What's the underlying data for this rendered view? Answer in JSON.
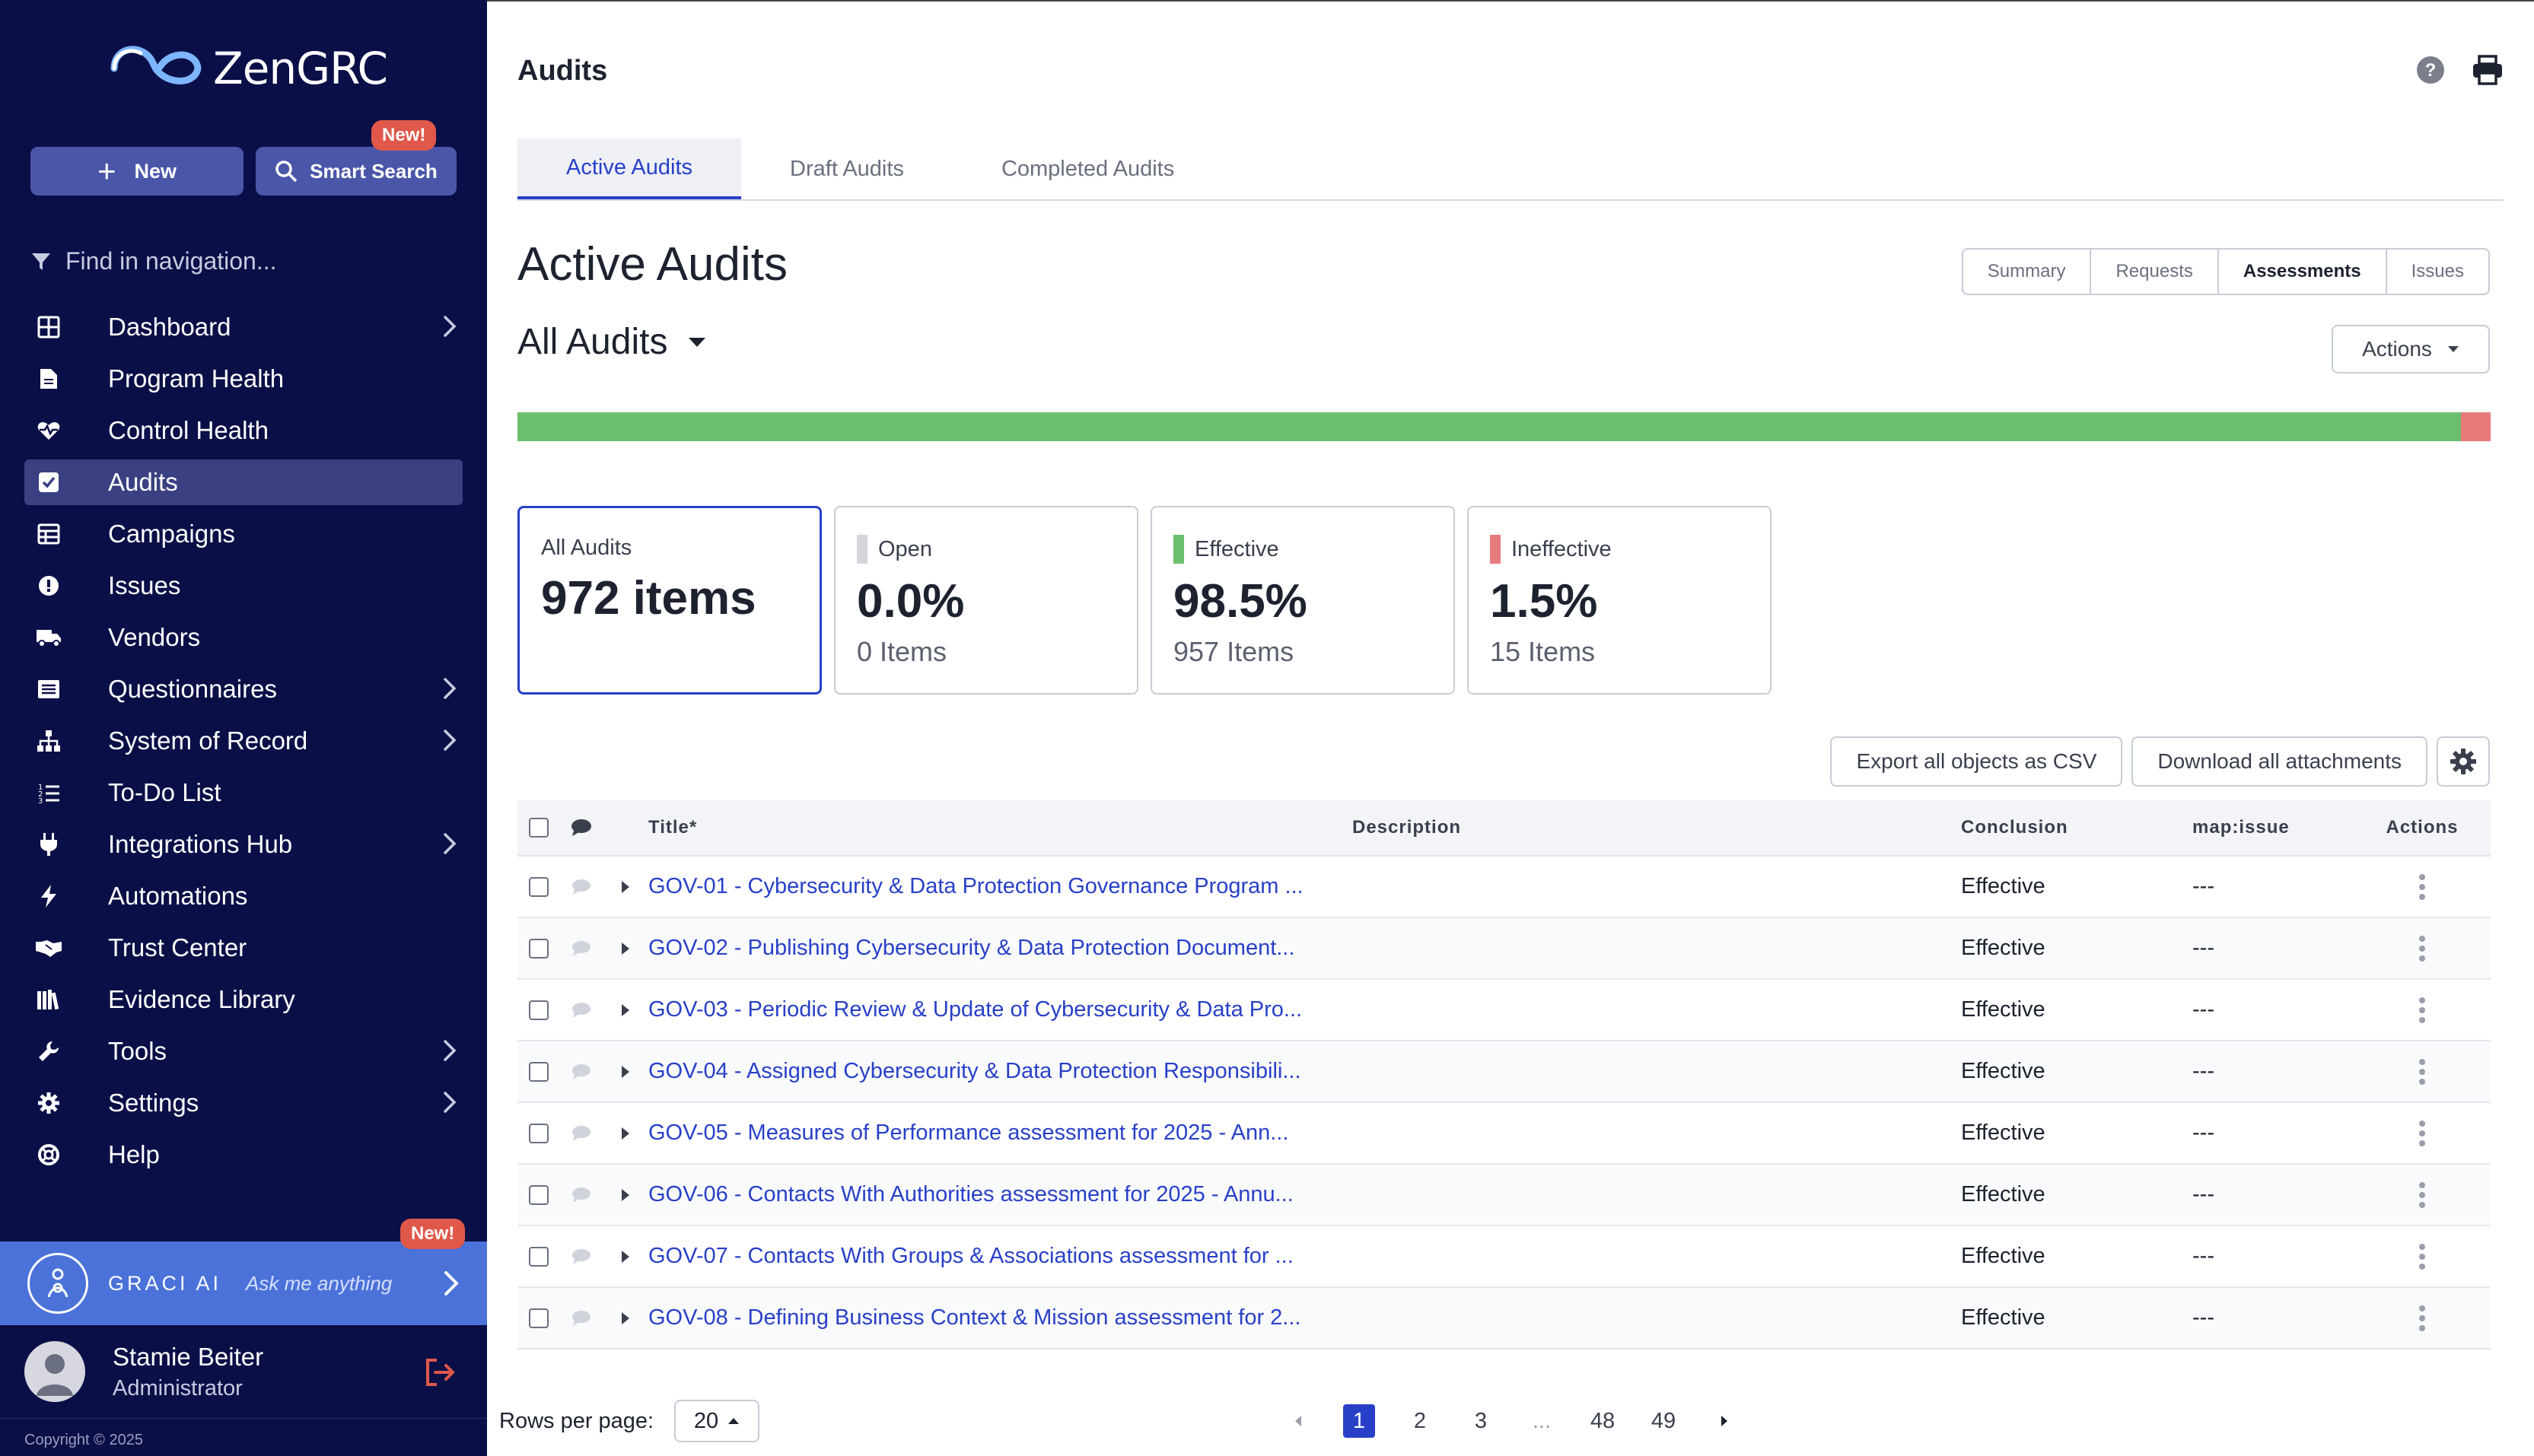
{
  "app": {
    "logo": "ZenGRC"
  },
  "sidebar": {
    "new_label": "New",
    "smart_search_label": "Smart Search",
    "smart_search_badge": "New!",
    "find_placeholder": "Find in navigation...",
    "items": [
      {
        "label": "Dashboard",
        "icon": "grid-icon",
        "chevron": true
      },
      {
        "label": "Program Health",
        "icon": "document-icon",
        "chevron": false
      },
      {
        "label": "Control Health",
        "icon": "heartbeat-icon",
        "chevron": false
      },
      {
        "label": "Audits",
        "icon": "checkbox-icon",
        "chevron": false,
        "active": true
      },
      {
        "label": "Campaigns",
        "icon": "table-icon",
        "chevron": false
      },
      {
        "label": "Issues",
        "icon": "alert-circle-icon",
        "chevron": false
      },
      {
        "label": "Vendors",
        "icon": "truck-icon",
        "chevron": false
      },
      {
        "label": "Questionnaires",
        "icon": "list-icon",
        "chevron": true
      },
      {
        "label": "System of Record",
        "icon": "sitemap-icon",
        "chevron": true
      },
      {
        "label": "To-Do List",
        "icon": "numbered-list-icon",
        "chevron": false
      },
      {
        "label": "Integrations Hub",
        "icon": "plug-icon",
        "chevron": true
      },
      {
        "label": "Automations",
        "icon": "bolt-icon",
        "chevron": false
      },
      {
        "label": "Trust Center",
        "icon": "handshake-icon",
        "chevron": false
      },
      {
        "label": "Evidence Library",
        "icon": "library-icon",
        "chevron": false
      },
      {
        "label": "Tools",
        "icon": "wrench-icon",
        "chevron": true
      },
      {
        "label": "Settings",
        "icon": "gear-icon",
        "chevron": true
      },
      {
        "label": "Help",
        "icon": "lifebuoy-icon",
        "chevron": false
      }
    ],
    "graci": {
      "title": "GRACI AI",
      "hint": "Ask me anything",
      "badge": "New!"
    },
    "user": {
      "name": "Stamie Beiter",
      "role": "Administrator"
    },
    "copyright": "Copyright © 2025"
  },
  "header": {
    "title": "Audits"
  },
  "tabs": [
    "Active Audits",
    "Draft Audits",
    "Completed Audits"
  ],
  "section": {
    "title": "Active Audits",
    "filter_title": "All Audits",
    "views": [
      "Summary",
      "Requests",
      "Assessments",
      "Issues"
    ],
    "selected_view": "Assessments",
    "actions_label": "Actions"
  },
  "progress": {
    "effective_fraction": 0.985,
    "ineffective_fraction": 0.015,
    "effective_color": "#6cbf6f",
    "ineffective_color": "#e77b7b"
  },
  "stats": [
    {
      "label": "All Audits",
      "value": "972 items",
      "sub": "",
      "color": ""
    },
    {
      "label": "Open",
      "value": "0.0%",
      "sub": "0 Items",
      "color": "#d5d6dc"
    },
    {
      "label": "Effective",
      "value": "98.5%",
      "sub": "957 Items",
      "color": "#6cbf6f"
    },
    {
      "label": "Ineffective",
      "value": "1.5%",
      "sub": "15 Items",
      "color": "#e77b7b"
    }
  ],
  "table_tools": {
    "export_label": "Export all objects as CSV",
    "download_label": "Download all attachments"
  },
  "table": {
    "headers": {
      "title": "Title*",
      "description": "Description",
      "conclusion": "Conclusion",
      "map": "map:issue",
      "actions": "Actions"
    },
    "rows": [
      {
        "title": "GOV-01 - Cybersecurity & Data Protection Governance Program ...",
        "description": "",
        "conclusion": "Effective",
        "map": "---"
      },
      {
        "title": "GOV-02 - Publishing Cybersecurity & Data Protection Document...",
        "description": "",
        "conclusion": "Effective",
        "map": "---"
      },
      {
        "title": "GOV-03 - Periodic Review & Update of Cybersecurity & Data Pro...",
        "description": "",
        "conclusion": "Effective",
        "map": "---"
      },
      {
        "title": "GOV-04 - Assigned Cybersecurity & Data Protection Responsibili...",
        "description": "",
        "conclusion": "Effective",
        "map": "---"
      },
      {
        "title": "GOV-05 - Measures of Performance assessment for 2025 - Ann...",
        "description": "",
        "conclusion": "Effective",
        "map": "---"
      },
      {
        "title": "GOV-06 - Contacts With Authorities assessment for 2025 - Annu...",
        "description": "",
        "conclusion": "Effective",
        "map": "---"
      },
      {
        "title": "GOV-07 - Contacts With Groups & Associations assessment for ...",
        "description": "",
        "conclusion": "Effective",
        "map": "---"
      },
      {
        "title": "GOV-08 - Defining Business Context & Mission assessment for 2...",
        "description": "",
        "conclusion": "Effective",
        "map": "---"
      }
    ]
  },
  "pagination": {
    "rows_label": "Rows per page:",
    "rows_value": "20",
    "pages": [
      "1",
      "2",
      "3",
      "...",
      "48",
      "49"
    ],
    "current": "1"
  },
  "colors": {
    "sidebar_bg": "#0b0f47",
    "accent": "#2840c8",
    "graci_bg": "#4a72d9",
    "badge": "#e0584a"
  }
}
